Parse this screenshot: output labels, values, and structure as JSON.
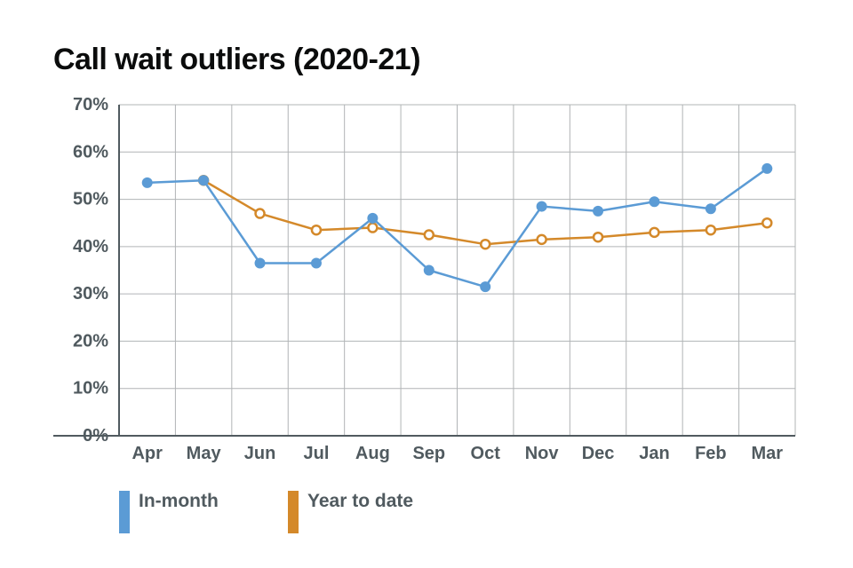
{
  "chart_data": {
    "type": "line",
    "title": "Call wait outliers (2020-21)",
    "categories": [
      "Apr",
      "May",
      "Jun",
      "Jul",
      "Aug",
      "Sep",
      "Oct",
      "Nov",
      "Dec",
      "Jan",
      "Feb",
      "Mar"
    ],
    "yticks": [
      "0%",
      "10%",
      "20%",
      "30%",
      "40%",
      "50%",
      "60%",
      "70%"
    ],
    "ylim": [
      0,
      70
    ],
    "grid": true,
    "legend_position": "bottom-left",
    "series": [
      {
        "name": "In-month",
        "color": "#5b9bd5",
        "marker": "filled",
        "values": [
          53.5,
          54,
          36.5,
          36.5,
          46,
          35,
          31.5,
          48.5,
          47.5,
          49.5,
          48,
          56.5
        ]
      },
      {
        "name": "Year to date",
        "color": "#d4892a",
        "marker": "open",
        "values": [
          null,
          54,
          47,
          43.5,
          44,
          42.5,
          40.5,
          41.5,
          42,
          43,
          43.5,
          45
        ]
      }
    ]
  }
}
